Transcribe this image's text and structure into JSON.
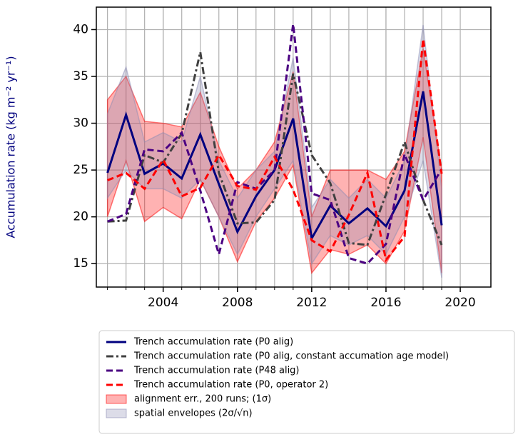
{
  "chart_data": {
    "type": "line",
    "y_label": "Accumulation rate (kg m⁻² yr⁻¹)",
    "x": [
      2001,
      2002,
      2003,
      2004,
      2005,
      2006,
      2007,
      2008,
      2009,
      2010,
      2011,
      2012,
      2013,
      2014,
      2015,
      2016,
      2017,
      2018,
      2019
    ],
    "xlim": [
      2000.4,
      2021.65
    ],
    "xticks": [
      2004,
      2008,
      2012,
      2016,
      2020
    ],
    "ylim": [
      12.5,
      42.4
    ],
    "yticks": [
      15,
      20,
      25,
      30,
      35,
      40
    ],
    "grid": true,
    "bands": [
      {
        "name": "alignment err., 200 runs; (1σ)",
        "color": "#ff0000",
        "upper": [
          32.5,
          35,
          30.2,
          30,
          29.6,
          33.3,
          27.5,
          23,
          25,
          28,
          35.5,
          20,
          25,
          25,
          25,
          24,
          27,
          38,
          25
        ],
        "lower": [
          20,
          26,
          19.5,
          21,
          19.8,
          24,
          20,
          15.2,
          19.5,
          22,
          25.5,
          14,
          16.5,
          16,
          17,
          15,
          18.5,
          28.5,
          14
        ]
      },
      {
        "name": "spatial envelopes (2σ/√n)",
        "color": "#8c8cb4",
        "upper": [
          31,
          36,
          28,
          29,
          28,
          35,
          26,
          22,
          25,
          27,
          37,
          21,
          24,
          22,
          24,
          22,
          26,
          40.5,
          23
        ],
        "lower": [
          22,
          25,
          23,
          23,
          22,
          24,
          20,
          16,
          20,
          23,
          26,
          15,
          18,
          17,
          18,
          16,
          20,
          26,
          13.5
        ]
      }
    ],
    "series": [
      {
        "name": "Trench accumulation rate (P0 alig)",
        "color": "#00007f",
        "linestyle": "solid",
        "values": [
          24.7,
          30.9,
          24.6,
          25.7,
          24.1,
          28.8,
          23.5,
          18.4,
          22.2,
          25,
          30.5,
          17.7,
          21.2,
          19.3,
          20.9,
          19.0,
          22.8,
          33.4,
          19.1
        ]
      },
      {
        "name": "Trench accumulation rate (P0 alig, constant accumation age model)",
        "color": "#404040",
        "linestyle": "dashdot",
        "values": [
          19.5,
          19.6,
          26.6,
          25.8,
          28.9,
          37.6,
          24.7,
          19.3,
          19.4,
          21.8,
          35.3,
          26.6,
          23.6,
          17.2,
          17.0,
          22.4,
          28.0,
          21.8,
          17.0
        ]
      },
      {
        "name": "Trench accumulation rate (P48 alig)",
        "color": "#4b0082",
        "linestyle": "dashed",
        "values": [
          19.5,
          20.3,
          27.2,
          27.0,
          29.0,
          22.8,
          16.0,
          23.7,
          23.0,
          25.0,
          40.6,
          22.5,
          21.8,
          15.6,
          15.0,
          17.1,
          26.7,
          21.8,
          25.1
        ]
      },
      {
        "name": "Trench accumulation rate (P0, operator 2)",
        "color": "#ff0000",
        "linestyle": "dashed",
        "values": [
          23.9,
          24.7,
          23.0,
          26.1,
          22.2,
          23.1,
          26.6,
          23.3,
          22.9,
          26.4,
          22.9,
          17.5,
          16.3,
          20.2,
          24.7,
          15.4,
          17.9,
          39.0,
          24.6
        ]
      }
    ]
  }
}
